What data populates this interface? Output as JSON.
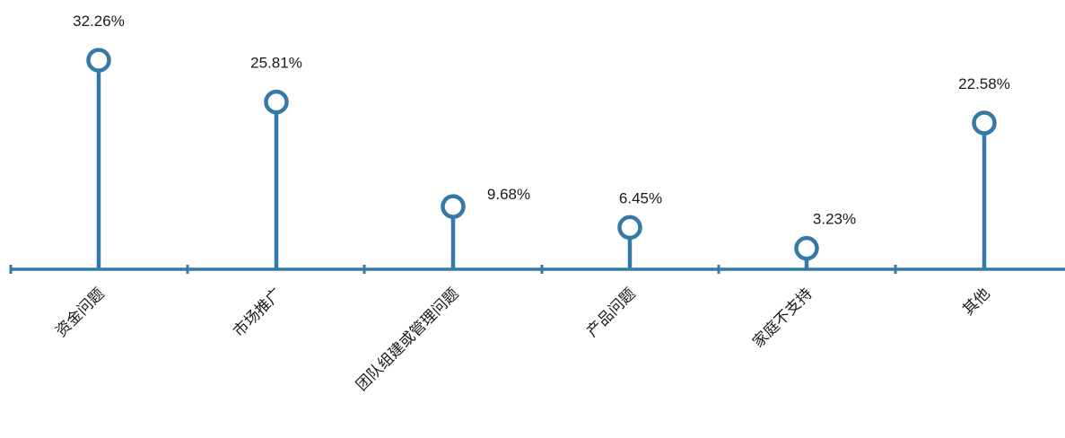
{
  "chart_data": {
    "type": "lollipop",
    "categories": [
      "资金问题",
      "市场推广",
      "团队组建或管理问题",
      "产品问题",
      "家庭不支持",
      "其他"
    ],
    "values": [
      32.26,
      25.81,
      9.68,
      6.45,
      3.23,
      22.58
    ],
    "data_labels": [
      "32.26%",
      "25.81%",
      "9.68%",
      "6.45%",
      "3.23%",
      "22.58%"
    ],
    "unit": "%",
    "ylim": [
      0,
      40
    ],
    "grid": false,
    "legend": "none",
    "colors": {
      "series": "#3579a8",
      "text": "#1a1a1a",
      "background": "#ffffff"
    }
  }
}
